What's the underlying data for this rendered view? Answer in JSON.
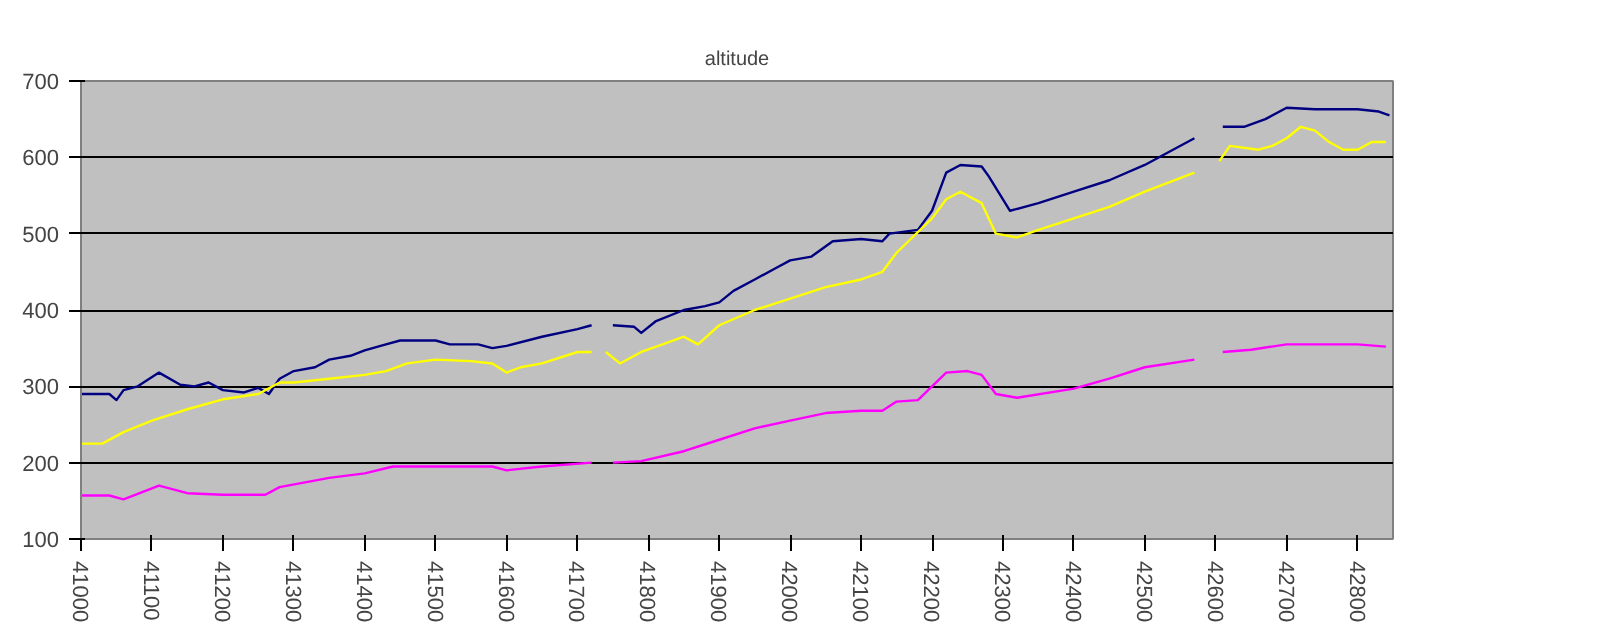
{
  "chart_data": {
    "type": "line",
    "title": "altitude",
    "x": [
      41000,
      41040,
      41050,
      41060,
      41080,
      41110,
      41140,
      41160,
      41180,
      41200,
      41230,
      41250,
      41265,
      41280,
      41300,
      41330,
      41350,
      41380,
      41400,
      41430,
      41450,
      41500,
      41520,
      41560,
      41580,
      41600,
      41650,
      41700,
      41720,
      41735,
      41750,
      41780,
      41790,
      41810,
      41850,
      41880,
      41900,
      41920,
      41950,
      41980,
      42000,
      42030,
      42060,
      42100,
      42130,
      42140,
      42180,
      42200,
      42220,
      42240,
      42270,
      42280,
      42310,
      42350,
      42400,
      42450,
      42500,
      42530,
      42570,
      42590,
      42610,
      42640,
      42670,
      42700,
      42740,
      42800,
      42830,
      42845
    ],
    "series": [
      {
        "color": "#000080",
        "values": [
          290,
          290,
          282,
          295,
          300,
          318,
          302,
          300,
          305,
          295,
          292,
          298,
          290,
          310,
          320,
          325,
          335,
          340,
          347,
          355,
          360,
          360,
          355,
          355,
          350,
          353,
          365,
          375,
          380,
          null,
          380,
          378,
          370,
          385,
          400,
          405,
          410,
          425,
          440,
          455,
          465,
          470,
          490,
          493,
          490,
          500,
          505,
          530,
          580,
          590,
          588,
          575,
          530,
          540,
          555,
          570,
          590,
          605,
          625,
          null,
          640,
          640,
          650,
          665,
          663,
          663,
          660,
          655
        ]
      },
      {
        "color": "#ffff00",
        "x": [
          41000,
          41030,
          41060,
          41100,
          41150,
          41200,
          41250,
          41280,
          41300,
          41350,
          41400,
          41430,
          41460,
          41500,
          41550,
          41580,
          41600,
          41620,
          41650,
          41700,
          41720,
          41730,
          41740,
          41760,
          41790,
          41820,
          41850,
          41870,
          41900,
          41950,
          42000,
          42050,
          42100,
          42130,
          42150,
          42200,
          42220,
          42240,
          42270,
          42290,
          42320,
          42350,
          42400,
          42450,
          42500,
          42570,
          42590,
          42605,
          42620,
          42660,
          42680,
          42700,
          42720,
          42740,
          42760,
          42780,
          42800,
          42820,
          42840
        ],
        "values": [
          225,
          225,
          240,
          255,
          270,
          283,
          290,
          305,
          305,
          310,
          315,
          320,
          330,
          335,
          333,
          330,
          318,
          325,
          330,
          345,
          345,
          null,
          345,
          330,
          345,
          355,
          365,
          355,
          380,
          400,
          415,
          430,
          440,
          450,
          475,
          520,
          545,
          555,
          540,
          500,
          495,
          505,
          520,
          535,
          555,
          580,
          null,
          595,
          615,
          610,
          615,
          625,
          640,
          635,
          620,
          610,
          610,
          620,
          620
        ]
      },
      {
        "color": "#ff00ff",
        "x": [
          41000,
          41040,
          41060,
          41110,
          41150,
          41200,
          41260,
          41280,
          41350,
          41400,
          41440,
          41500,
          41580,
          41600,
          41650,
          41720,
          41735,
          41750,
          41790,
          41850,
          41900,
          41950,
          42000,
          42050,
          42100,
          42130,
          42150,
          42180,
          42220,
          42250,
          42270,
          42290,
          42320,
          42400,
          42450,
          42500,
          42570,
          42590,
          42610,
          42650,
          42700,
          42750,
          42800,
          42840
        ],
        "values": [
          157,
          157,
          152,
          170,
          160,
          158,
          158,
          168,
          180,
          186,
          195,
          195,
          195,
          190,
          195,
          200,
          null,
          200,
          202,
          215,
          230,
          245,
          255,
          265,
          268,
          268,
          280,
          282,
          318,
          320,
          315,
          290,
          285,
          297,
          310,
          325,
          335,
          null,
          345,
          348,
          355,
          355,
          355,
          352
        ]
      }
    ],
    "xlim": [
      41000,
      42850
    ],
    "xticks": [
      41000,
      41100,
      41200,
      41300,
      41400,
      41500,
      41600,
      41700,
      41800,
      41900,
      42000,
      42100,
      42200,
      42300,
      42400,
      42500,
      42600,
      42700,
      42800
    ],
    "ylim": [
      100,
      700
    ],
    "yticks": [
      100,
      200,
      300,
      400,
      500,
      600,
      700
    ],
    "grid": "y",
    "marker": "none",
    "line_style": "solid"
  }
}
